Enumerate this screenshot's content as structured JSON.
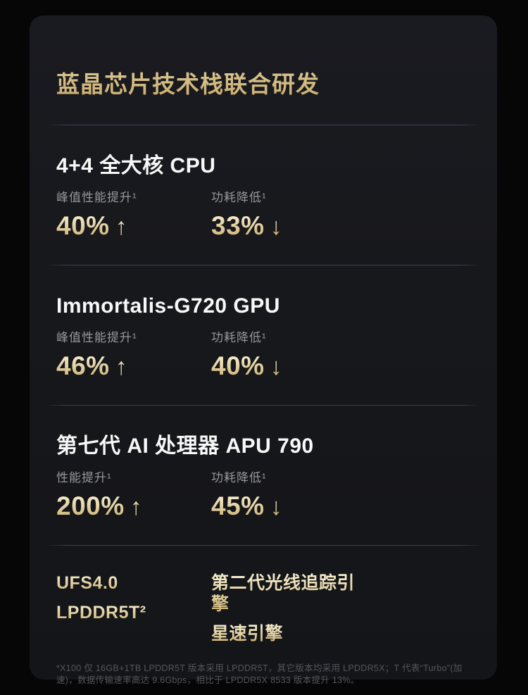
{
  "card": {
    "title": "蓝晶芯片技术栈联合研发"
  },
  "sections": [
    {
      "title": "4+4 全大核 CPU",
      "stats": [
        {
          "label": "峰值性能提升¹",
          "value": "40%",
          "arrow": "↑"
        },
        {
          "label": "功耗降低¹",
          "value": "33%",
          "arrow": "↓"
        }
      ]
    },
    {
      "title": "Immortalis-G720 GPU",
      "stats": [
        {
          "label": "峰值性能提升¹",
          "value": "46%",
          "arrow": "↑"
        },
        {
          "label": "功耗降低¹",
          "value": "40%",
          "arrow": "↓"
        }
      ]
    },
    {
      "title": "第七代 AI 处理器 APU 790",
      "stats": [
        {
          "label": "性能提升¹",
          "value": "200%",
          "arrow": "↑"
        },
        {
          "label": "功耗降低¹",
          "value": "45%",
          "arrow": "↓"
        }
      ]
    }
  ],
  "features": {
    "left": [
      "UFS4.0",
      "LPDDR5T²"
    ],
    "right": [
      "第二代光线追踪引擎",
      "星速引擎"
    ]
  },
  "footnote": "*X100 仅 16GB+1TB LPDDR5T 版本采用 LPDDR5T，其它版本均采用 LPDDR5X；T 代表“Turbo”(加速)，数据传输速率高达 9.6Gbps，相比于 LPDDR5X 8533 版本提升 13%。",
  "colors": {
    "gold_light": "#f5ecca",
    "gold_dark": "#ccb173",
    "heading": "#f8f8f8",
    "label": "#97989c",
    "card_bg": "#17181c",
    "page_bg": "#060607",
    "footnote": "#55565b"
  }
}
